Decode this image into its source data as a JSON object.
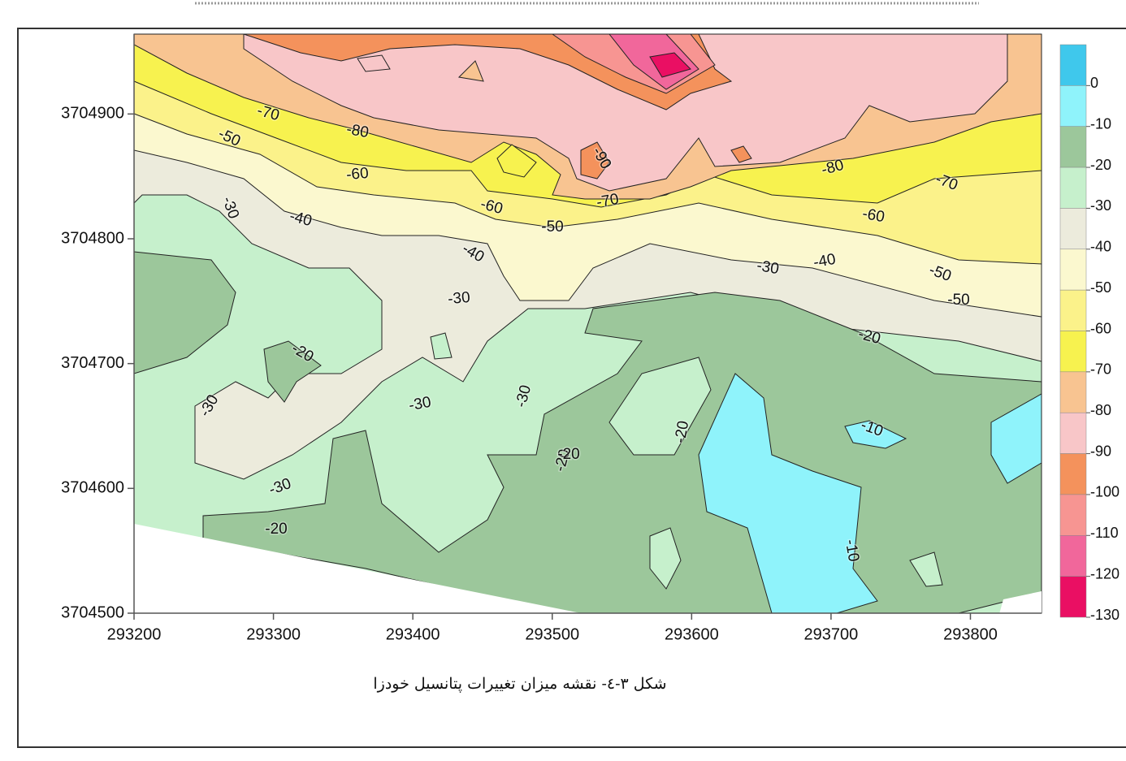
{
  "chart_data": {
    "type": "contour",
    "caption": "شکل ۳-٤- نقشه میزان تغییرات پتانسیل خودزا",
    "xlim": [
      293200,
      293851
    ],
    "ylim": [
      3704500,
      3704964
    ],
    "xticks": [
      293200,
      293300,
      293400,
      293500,
      293600,
      293700,
      293800
    ],
    "yticks": [
      3704500,
      3704600,
      3704700,
      3704800,
      3704900
    ],
    "colorbar": {
      "levels": [
        0,
        -10,
        -20,
        -30,
        -40,
        -50,
        -60,
        -70,
        -80,
        -90,
        -100,
        -110,
        -120,
        -130
      ],
      "colors": [
        "#3fc8ec",
        "#8ff3fb",
        "#9cc79b",
        "#c6f0cc",
        "#ecebdc",
        "#fbf8cf",
        "#fbf28a",
        "#f7f24f",
        "#f8c491",
        "#f8c6c8",
        "#f4925c",
        "#f79592",
        "#f1679b",
        "#ea0f63"
      ]
    },
    "contour_labels": [
      -70,
      -80,
      -50,
      -60,
      -90,
      -80,
      -70,
      -60,
      -50,
      -40,
      -30,
      -40,
      -60,
      -70,
      -50,
      -30,
      -40,
      -30,
      -50,
      -20,
      -20,
      -30,
      -30,
      -30,
      -20,
      -20,
      -10,
      -30,
      -20,
      -10,
      -20
    ]
  }
}
